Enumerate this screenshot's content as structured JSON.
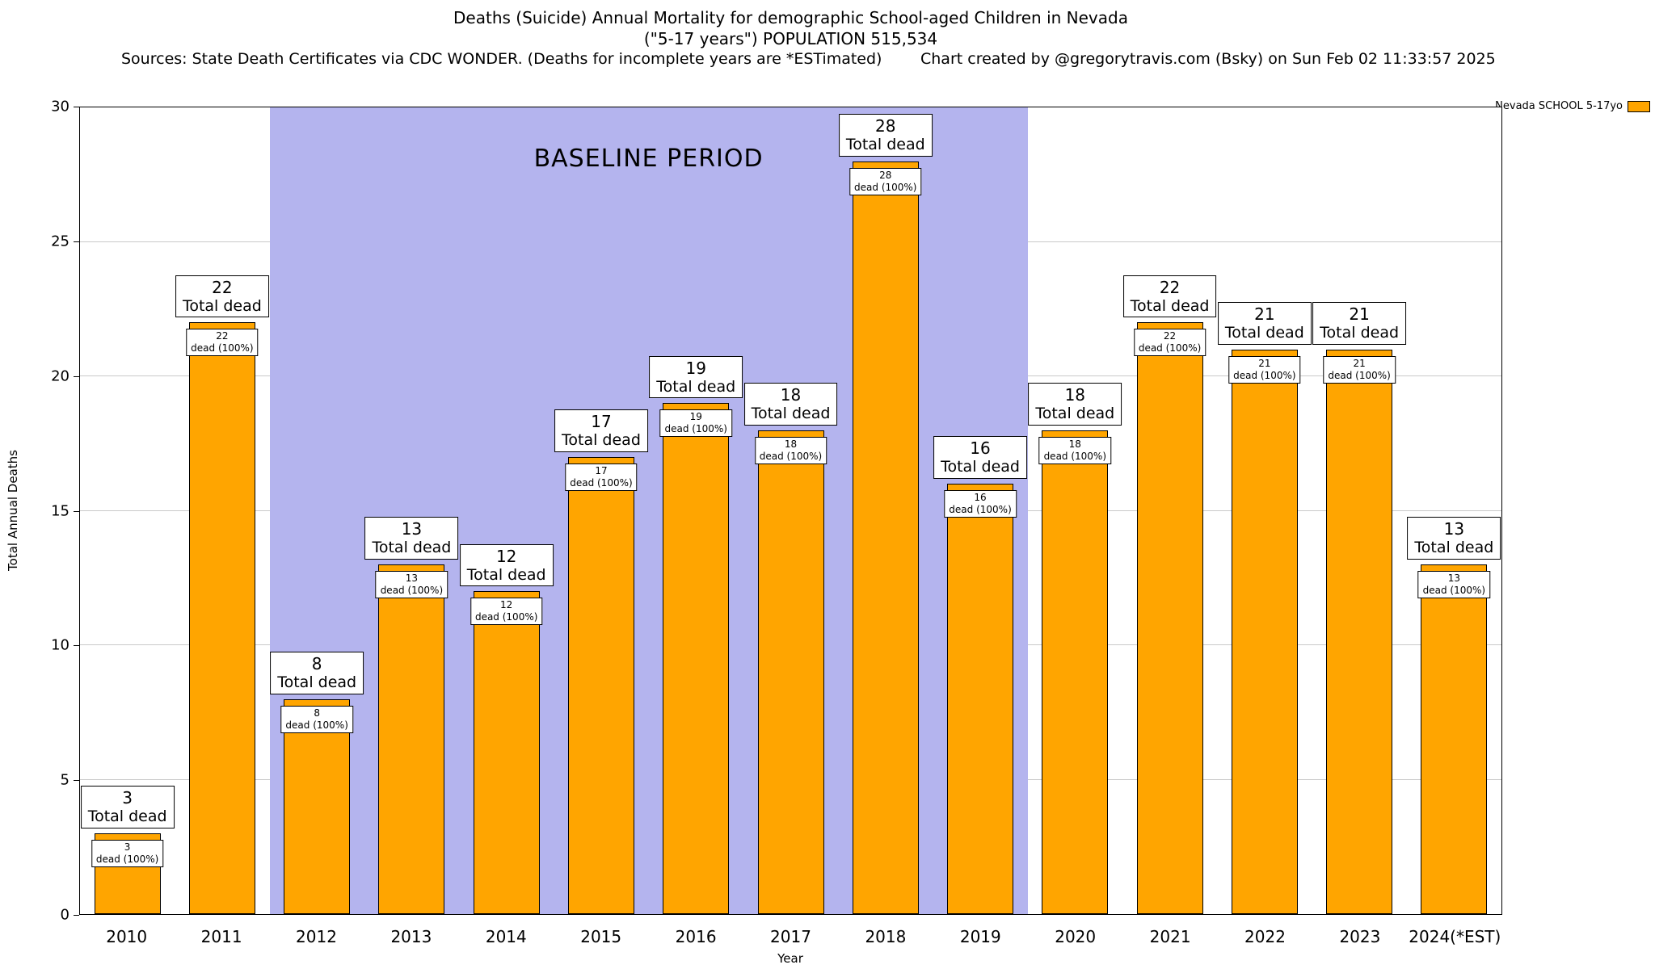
{
  "header": {
    "title_line1": "Deaths (Suicide) Annual Mortality for demographic School-aged Children in Nevada",
    "title_line2": "(\"5-17 years\") POPULATION 515,534",
    "sources": "Sources: State Death Certificates via CDC WONDER. (Deaths for incomplete years are *ESTimated)",
    "credit": "Chart created by @gregorytravis.com (Bsky) on Sun Feb 02 11:33:57 2025"
  },
  "legend": {
    "label": "Nevada SCHOOL 5-17yo",
    "swatch_color": "#FFA500"
  },
  "chart_data": {
    "type": "bar",
    "title": "Deaths (Suicide) Annual Mortality for demographic School-aged Children in Nevada",
    "categories": [
      "2010",
      "2011",
      "2012",
      "2013",
      "2014",
      "2015",
      "2016",
      "2017",
      "2018",
      "2019",
      "2020",
      "2021",
      "2022",
      "2023",
      "2024(*EST)"
    ],
    "values": [
      3,
      22,
      8,
      13,
      12,
      17,
      19,
      18,
      28,
      16,
      18,
      22,
      21,
      21,
      13
    ],
    "xlabel": "Year",
    "ylabel": "Total Annual Deaths",
    "ylim": [
      0,
      30
    ],
    "yticks": [
      0,
      5,
      10,
      15,
      20,
      25,
      30
    ],
    "grid": true,
    "bar_color": "#FFA500",
    "bar_border_color": "#000000",
    "bar_total_suffix": "Total dead",
    "bar_inner_suffix": "dead (100%)",
    "baseline_band": {
      "label": "BASELINE PERIOD",
      "from_category": "2012",
      "to_category": "2019",
      "color": "#b4b4ee"
    },
    "legend_position": "top-right"
  }
}
